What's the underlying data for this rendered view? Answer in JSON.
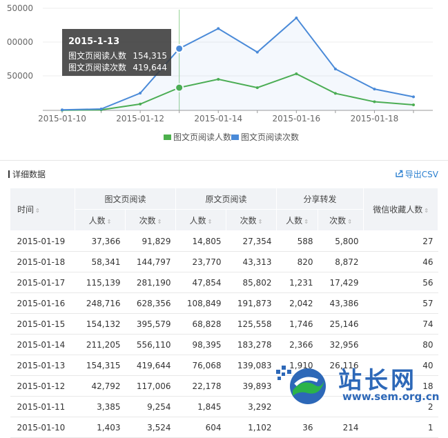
{
  "chart_data": {
    "type": "line",
    "x": [
      "2015-01-10",
      "2015-01-11",
      "2015-01-12",
      "2015-01-13",
      "2015-01-14",
      "2015-01-15",
      "2015-01-16",
      "2015-01-17",
      "2015-01-18",
      "2015-01-19"
    ],
    "x_tick_labels": [
      "2015-01-10",
      "2015-01-12",
      "2015-01-14",
      "2015-01-16",
      "2015-01-18"
    ],
    "y_tick_labels": [
      "50000",
      "00000",
      "50000"
    ],
    "ylim": [
      0,
      750000
    ],
    "series": [
      {
        "name": "图文页阅读人数",
        "color": "#4cb04c",
        "values": [
          1403,
          3385,
          42792,
          154315,
          211205,
          154132,
          248716,
          115139,
          58341,
          37366
        ]
      },
      {
        "name": "图文页阅读次数",
        "color": "#4a8ad8",
        "values": [
          3524,
          9254,
          117006,
          419644,
          556110,
          395579,
          628356,
          281190,
          144797,
          91829
        ]
      }
    ],
    "tooltip": {
      "date": "2015-1-13",
      "rows": [
        {
          "label": "图文页阅读人数",
          "value": "154,315"
        },
        {
          "label": "图文页阅读次数",
          "value": "419,644"
        }
      ]
    },
    "legend_position": "bottom"
  },
  "section": {
    "title": "详细数据",
    "export_label": "导出CSV"
  },
  "table": {
    "col_time": "时间",
    "groups": [
      "图文页阅读",
      "原文页阅读",
      "分享转发"
    ],
    "col_fav": "微信收藏人数",
    "sub": [
      "人数",
      "次数"
    ],
    "rows": [
      [
        "2015-01-19",
        "37,366",
        "91,829",
        "14,805",
        "27,354",
        "588",
        "5,800",
        "27"
      ],
      [
        "2015-01-18",
        "58,341",
        "144,797",
        "23,770",
        "43,313",
        "820",
        "8,872",
        "46"
      ],
      [
        "2015-01-17",
        "115,139",
        "281,190",
        "47,854",
        "85,802",
        "1,231",
        "17,429",
        "56"
      ],
      [
        "2015-01-16",
        "248,716",
        "628,356",
        "108,849",
        "191,873",
        "2,042",
        "43,386",
        "57"
      ],
      [
        "2015-01-15",
        "154,132",
        "395,579",
        "68,828",
        "125,558",
        "1,746",
        "25,146",
        "74"
      ],
      [
        "2015-01-14",
        "211,205",
        "556,110",
        "98,395",
        "183,278",
        "2,366",
        "32,956",
        "80"
      ],
      [
        "2015-01-13",
        "154,315",
        "419,644",
        "76,068",
        "139,083",
        "1,910",
        "26,116",
        "40"
      ],
      [
        "2015-01-12",
        "42,792",
        "117,006",
        "22,178",
        "39,893",
        "",
        "",
        "18"
      ],
      [
        "2015-01-11",
        "3,385",
        "9,254",
        "1,845",
        "3,292",
        "",
        "",
        "2"
      ],
      [
        "2015-01-10",
        "1,403",
        "3,524",
        "604",
        "1,102",
        "36",
        "214",
        "1"
      ]
    ]
  },
  "watermark": {
    "text": "站长网",
    "url": "www.sem.org.cn"
  },
  "colors": {
    "green": "#4cb04c",
    "blue": "#4a8ad8",
    "header_bg": "#f1f3f6",
    "link": "#2a7fcf"
  }
}
